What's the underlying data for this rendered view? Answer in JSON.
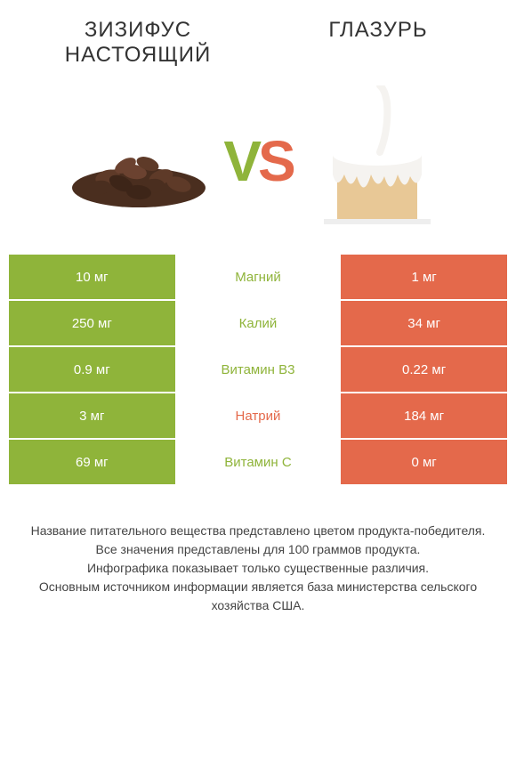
{
  "header": {
    "left_title": "ЗИЗИФУС НАСТОЯЩИЙ",
    "right_title": "ГЛАЗУРЬ",
    "vs_v": "V",
    "vs_s": "S"
  },
  "colors": {
    "left": "#8fb43a",
    "right": "#e4694b",
    "background": "#ffffff",
    "text": "#444444"
  },
  "table": {
    "rows": [
      {
        "left": "10 мг",
        "label": "Магний",
        "right": "1 мг",
        "winner": "left"
      },
      {
        "left": "250 мг",
        "label": "Калий",
        "right": "34 мг",
        "winner": "left"
      },
      {
        "left": "0.9 мг",
        "label": "Витамин B3",
        "right": "0.22 мг",
        "winner": "left"
      },
      {
        "left": "3 мг",
        "label": "Натрий",
        "right": "184 мг",
        "winner": "right"
      },
      {
        "left": "69 мг",
        "label": "Витамин C",
        "right": "0 мг",
        "winner": "left"
      }
    ]
  },
  "footer": {
    "line1": "Название питательного вещества представлено цветом продукта-победителя.",
    "line2": "Все значения представлены для 100 граммов продукта.",
    "line3": "Инфографика показывает только существенные различия.",
    "line4": "Основным источником информации является база министерства сельского хозяйства США."
  }
}
